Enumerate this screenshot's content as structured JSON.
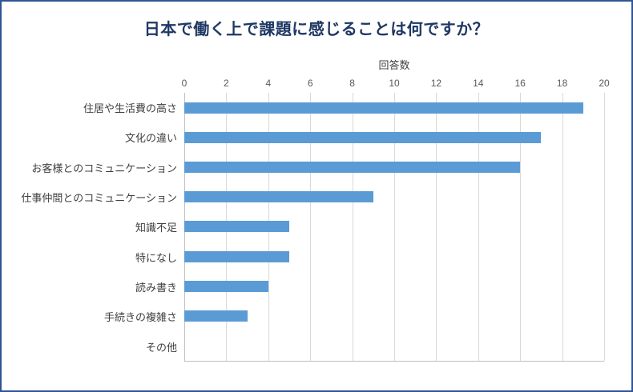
{
  "chart_data": {
    "type": "bar",
    "orientation": "horizontal",
    "title": "日本で働く上で課題に感じることは何ですか？",
    "axis_label": "回答数",
    "categories": [
      "住居や生活費の高さ",
      "文化の違い",
      "お客様とのコミュニケーション",
      "仕事仲間とのコミュニケーション",
      "知識不足",
      "特になし",
      "読み書き",
      "手続きの複雑さ",
      "その他"
    ],
    "values": [
      19,
      17,
      16,
      9,
      5,
      5,
      4,
      3,
      0
    ],
    "xlim": [
      0,
      20
    ],
    "ticks": [
      0,
      2,
      4,
      6,
      8,
      10,
      12,
      14,
      16,
      18,
      20
    ],
    "grid": true,
    "legend": "none",
    "colors": {
      "bar": "#5B9BD5",
      "frame_border": "#2F5597",
      "title_text": "#1F3864",
      "tick_text": "#595959",
      "category_text": "#404040",
      "gridline": "#D9D9D9",
      "axis_line": "#BFBFBF"
    }
  }
}
